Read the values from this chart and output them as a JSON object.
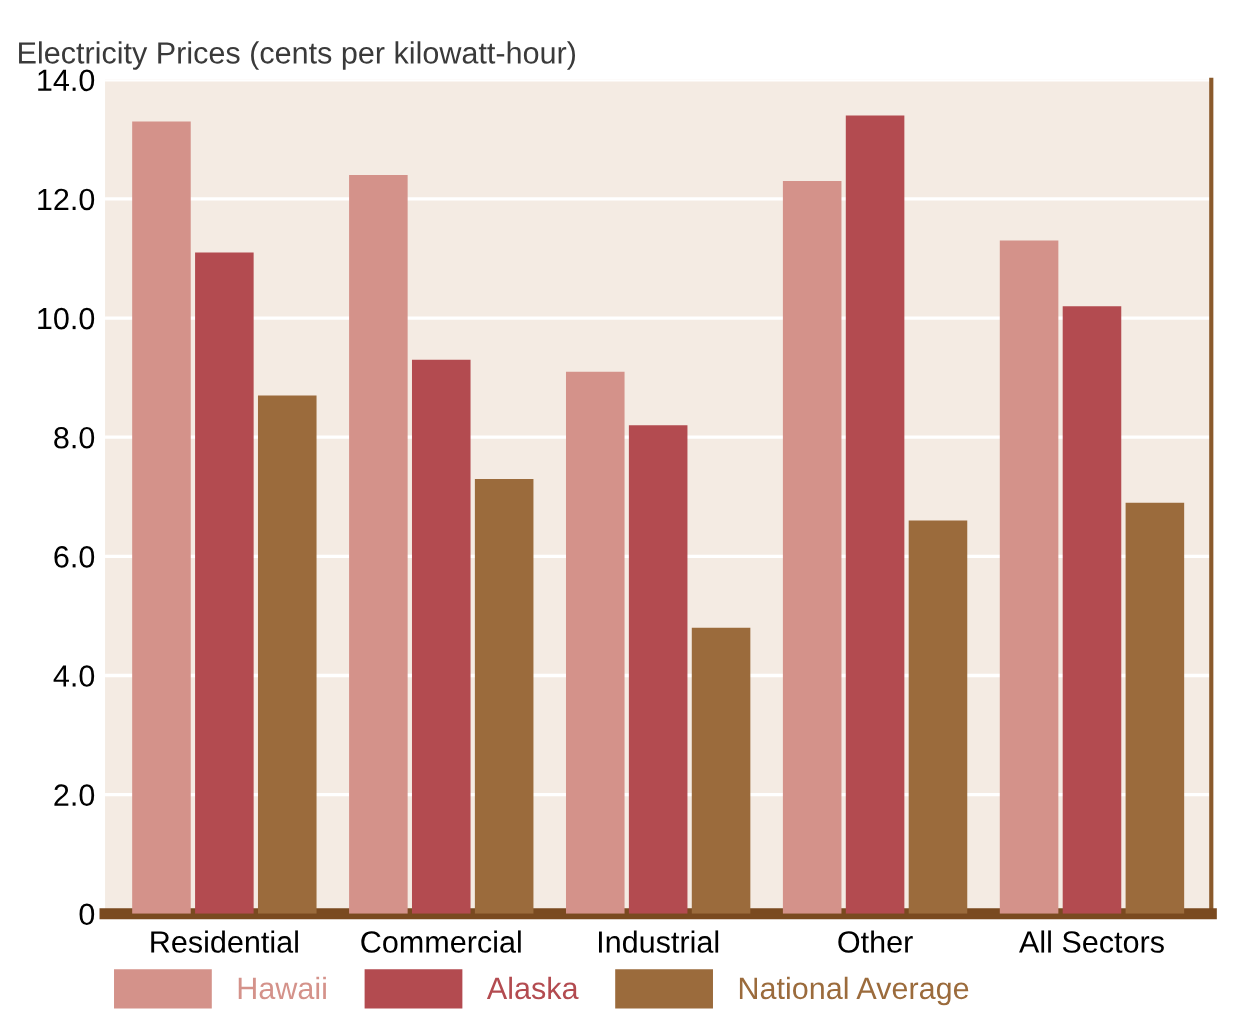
{
  "chart_data": {
    "type": "bar",
    "ylabel": "Electricity Prices (cents per kilowatt-hour)",
    "categories": [
      "Residential",
      "Commercial",
      "Industrial",
      "Other",
      "All Sectors"
    ],
    "series": [
      {
        "name": "Hawaii",
        "color": "#d4928a",
        "values": [
          13.3,
          12.4,
          9.1,
          12.3,
          11.3
        ]
      },
      {
        "name": "Alaska",
        "color": "#b34b50",
        "values": [
          11.1,
          9.3,
          8.2,
          13.4,
          10.2
        ]
      },
      {
        "name": "National Average",
        "color": "#9b6b3c",
        "values": [
          8.7,
          7.3,
          4.8,
          6.6,
          6.9
        ]
      }
    ],
    "ylim": [
      0,
      14
    ],
    "yticks": [
      {
        "value": 0,
        "label": "0"
      },
      {
        "value": 2,
        "label": "2.0"
      },
      {
        "value": 4,
        "label": "4.0"
      },
      {
        "value": 6,
        "label": "6.0"
      },
      {
        "value": 8,
        "label": "8.0"
      },
      {
        "value": 10,
        "label": "10.0"
      },
      {
        "value": 12,
        "label": "12.0"
      },
      {
        "value": 14,
        "label": "14.0"
      }
    ],
    "grid": "y",
    "legend": "bottom"
  }
}
